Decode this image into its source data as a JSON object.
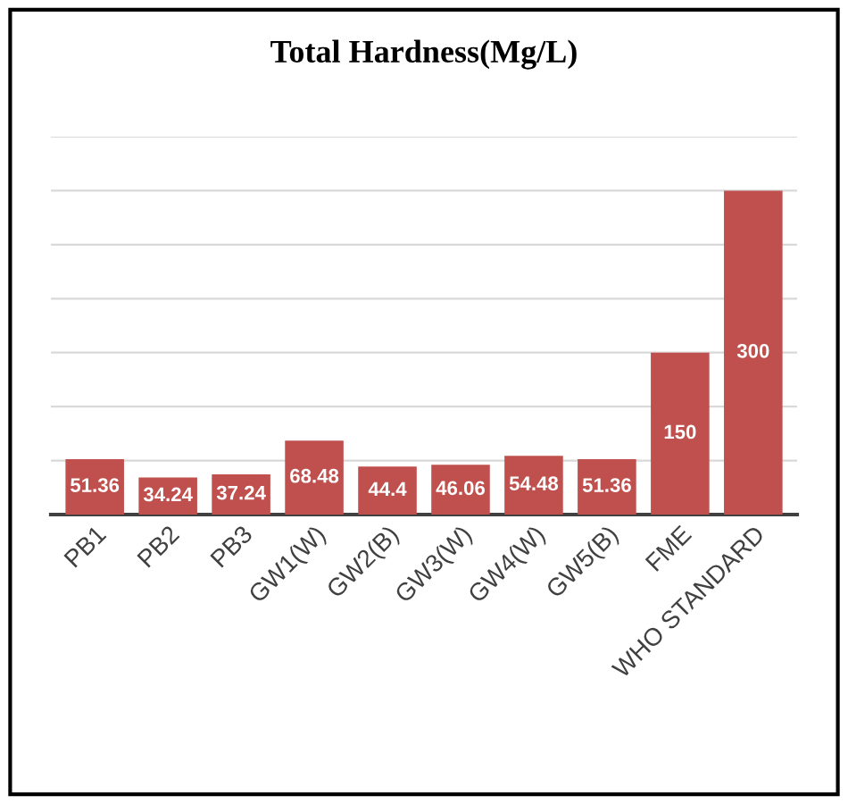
{
  "chart_data": {
    "type": "bar",
    "title": "Total Hardness(Mg/L)",
    "categories": [
      "PB1",
      "PB2",
      "PB3",
      "GW1(W)",
      "GW2(B)",
      "GW3(W)",
      "GW4(W)",
      "GW5(B)",
      "FME",
      "WHO STANDARD"
    ],
    "values": [
      51.36,
      34.24,
      37.24,
      68.48,
      44.4,
      46.06,
      54.48,
      51.36,
      150,
      300
    ],
    "color": "#c0504d",
    "data_labels": true,
    "grid": "y",
    "tick_labels": "x",
    "ylim": [
      0,
      350
    ],
    "yticks": [
      {
        "value": 0,
        "label": null
      },
      {
        "value": 50,
        "label": null
      },
      {
        "value": 100,
        "label": null
      },
      {
        "value": 150,
        "label": null
      },
      {
        "value": 200,
        "label": null
      },
      {
        "value": 250,
        "label": null
      },
      {
        "value": 300,
        "label": null
      },
      {
        "value": 350,
        "label": null
      }
    ]
  }
}
